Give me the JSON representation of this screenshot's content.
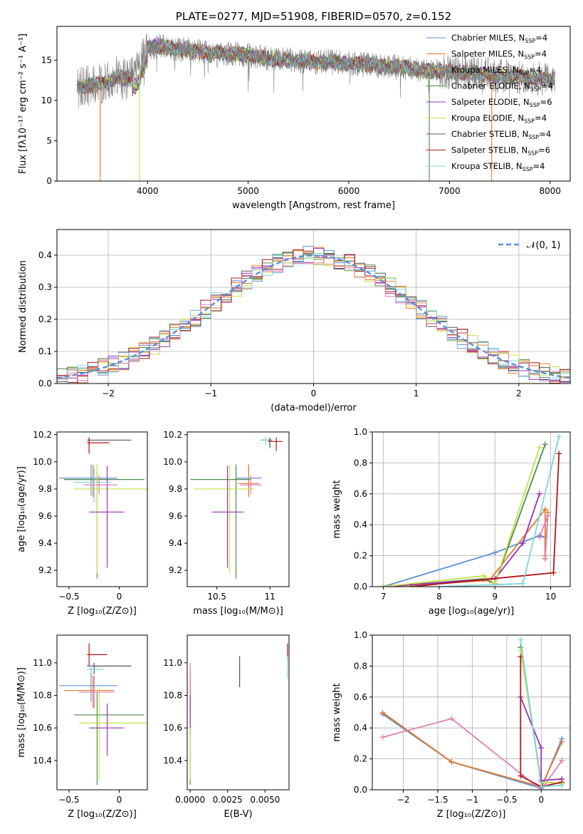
{
  "title": "PLATE=0277, MJD=51908, FIBERID=0570, z=0.152",
  "colors": {
    "chabrier_miles": "#5b8fd6",
    "salpeter_miles": "#e07a2e",
    "kroupa_miles": "#e8843a",
    "chabrier_elodie": "#4c8c4c",
    "salpeter_elodie": "#9b30b8",
    "kroupa_elodie": "#c8e04a",
    "chabrier_stelib": "#555555",
    "salpeter_stelib": "#b01818",
    "kroupa_stelib": "#7fd4de",
    "pink": "#e080b0",
    "data": "#808080",
    "normal": "#5b8fd6"
  },
  "legend": [
    {
      "label": "Chabrier MILES, N",
      "sub": "SSP",
      "tail": "=4",
      "color": "#5b8fd6"
    },
    {
      "label": "Salpeter MILES, N",
      "sub": "SSP",
      "tail": "=4",
      "color": "#e07a2e"
    },
    {
      "label": "Kroupa MILES, N",
      "sub": "SSP",
      "tail": "=4",
      "color": "#e8843a"
    },
    {
      "label": "Chabrier ELODIE, N",
      "sub": "SSP",
      "tail": "=4",
      "color": "#4c8c4c"
    },
    {
      "label": "Salpeter ELODIE, N",
      "sub": "SSP",
      "tail": "=6",
      "color": "#9b30b8"
    },
    {
      "label": "Kroupa ELODIE, N",
      "sub": "SSP",
      "tail": "=4",
      "color": "#c8e04a"
    },
    {
      "label": "Chabrier STELIB, N",
      "sub": "SSP",
      "tail": "=4",
      "color": "#555555"
    },
    {
      "label": "Salpeter STELIB, N",
      "sub": "SSP",
      "tail": "=6",
      "color": "#b01818"
    },
    {
      "label": "Kroupa STELIB, N",
      "sub": "SSP",
      "tail": "=4",
      "color": "#7fd4de"
    }
  ],
  "chart_data": [
    {
      "type": "line",
      "title": "PLATE=0277, MJD=51908, FIBERID=0570, z=0.152",
      "xlabel": "wavelength [Angstrom, rest frame]",
      "ylabel": "Flux [fλ10⁻¹⁷ erg cm⁻² s⁻¹ A⁻¹]",
      "xlim": [
        3100,
        8200
      ],
      "ylim": [
        0,
        19.2
      ],
      "xticks": [
        4000,
        5000,
        6000,
        7000,
        8000
      ],
      "yticks": [
        0,
        5,
        10,
        15
      ],
      "spectrum_continuum": {
        "x": [
          3300,
          3400,
          3500,
          3600,
          3700,
          3800,
          3900,
          4000,
          4100,
          4200,
          4400,
          4600,
          4800,
          5000,
          5200,
          5400,
          5600,
          5800,
          6000,
          6200,
          6400,
          6600,
          6800,
          7000,
          7200,
          7400,
          7600,
          7800,
          8000
        ],
        "y": [
          11.5,
          11.8,
          12.0,
          12.2,
          13.0,
          12.5,
          13.5,
          16.5,
          16.8,
          16.5,
          16.2,
          16.0,
          15.8,
          15.6,
          15.2,
          15.0,
          14.8,
          14.8,
          14.6,
          14.5,
          14.2,
          14.0,
          13.6,
          13.6,
          13.4,
          13.2,
          13.0,
          12.8,
          12.6
        ]
      },
      "model_drop_offs": [
        {
          "side": "low",
          "x": 3530,
          "color": "#e07a2e"
        },
        {
          "side": "low",
          "x": 3920,
          "color": "#c8e04a"
        },
        {
          "side": "high",
          "x": 6800,
          "color": "#4c8c4c"
        },
        {
          "side": "high",
          "x": 7420,
          "color": "#e07a2e"
        }
      ],
      "legend_loc": "upper right"
    },
    {
      "type": "line",
      "xlabel": "(data-model)/error",
      "ylabel": "Normed distribution",
      "xlim": [
        -2.5,
        2.5
      ],
      "ylim": [
        0,
        0.48
      ],
      "xticks": [
        -2,
        -1,
        0,
        1,
        2
      ],
      "yticks": [
        0.0,
        0.1,
        0.2,
        0.3,
        0.4
      ],
      "grid": true,
      "legend": "𝒩(0, 1)",
      "reference": "normal(0,1) dashed"
    },
    {
      "type": "scatter",
      "xlabel": "Z [log₁₀(Z/Z⊙)]",
      "ylabel": "age  [log₁₀(age/yr)]",
      "xlim": [
        -0.62,
        0.28
      ],
      "ylim": [
        9.08,
        10.22
      ],
      "xticks": [
        -0.5,
        0.0
      ],
      "yticks": [
        9.2,
        9.4,
        9.6,
        9.8,
        10.0,
        10.2
      ],
      "errorbars": [
        {
          "x": -0.3,
          "y": 10.16,
          "xlo": -0.32,
          "xhi": 0.12,
          "ylo": 10.12,
          "yhi": 10.18,
          "color": "#555555"
        },
        {
          "x": -0.3,
          "y": 10.14,
          "xlo": -0.32,
          "xhi": -0.1,
          "ylo": 10.06,
          "yhi": 10.18,
          "color": "#b01818"
        },
        {
          "x": -0.28,
          "y": 9.88,
          "xlo": -0.6,
          "xhi": -0.02,
          "ylo": 9.75,
          "yhi": 9.98,
          "color": "#5b8fd6"
        },
        {
          "x": -0.26,
          "y": 9.87,
          "xlo": -0.55,
          "xhi": -0.05,
          "ylo": 9.74,
          "yhi": 9.98,
          "color": "#e07a2e"
        },
        {
          "x": -0.22,
          "y": 9.87,
          "xlo": -0.55,
          "xhi": 0.25,
          "ylo": 9.14,
          "yhi": 9.98,
          "color": "#4c8c4c"
        },
        {
          "x": -0.22,
          "y": 9.8,
          "xlo": -0.45,
          "xhi": 0.28,
          "ylo": 9.18,
          "yhi": 9.98,
          "color": "#c8e04a"
        },
        {
          "x": -0.12,
          "y": 9.63,
          "xlo": -0.3,
          "xhi": 0.05,
          "ylo": 9.22,
          "yhi": 9.97,
          "color": "#9b30b8"
        },
        {
          "x": -0.2,
          "y": 9.83,
          "xlo": -0.35,
          "xhi": -0.02,
          "ylo": 9.76,
          "yhi": 9.9,
          "color": "#e080b0"
        },
        {
          "x": -0.25,
          "y": 9.85,
          "xlo": -0.45,
          "xhi": -0.08,
          "ylo": 9.7,
          "yhi": 9.95,
          "color": "#7fd4de"
        }
      ]
    },
    {
      "type": "scatter",
      "xlabel": "mass [log₁₀(M/M⊙)]",
      "xlim": [
        10.22,
        11.18
      ],
      "ylim": [
        9.08,
        10.22
      ],
      "xticks": [
        10.5,
        11.0
      ],
      "yticks": [
        9.2,
        9.4,
        9.6,
        9.8,
        10.0,
        10.2
      ],
      "errorbars": [
        {
          "x": 11.0,
          "y": 10.16,
          "xlo": 10.92,
          "xhi": 11.02,
          "ylo": 10.1,
          "yhi": 10.18,
          "color": "#555555"
        },
        {
          "x": 11.06,
          "y": 10.15,
          "xlo": 10.98,
          "xhi": 11.12,
          "ylo": 10.08,
          "yhi": 10.18,
          "color": "#b01818"
        },
        {
          "x": 10.8,
          "y": 9.88,
          "xlo": 10.68,
          "xhi": 10.92,
          "ylo": 9.76,
          "yhi": 9.98,
          "color": "#5b8fd6"
        },
        {
          "x": 10.8,
          "y": 9.84,
          "xlo": 10.7,
          "xhi": 10.9,
          "ylo": 9.74,
          "yhi": 9.98,
          "color": "#e07a2e"
        },
        {
          "x": 10.68,
          "y": 9.87,
          "xlo": 10.25,
          "xhi": 10.82,
          "ylo": 9.14,
          "yhi": 9.98,
          "color": "#4c8c4c"
        },
        {
          "x": 10.62,
          "y": 9.8,
          "xlo": 10.28,
          "xhi": 10.85,
          "ylo": 9.18,
          "yhi": 9.98,
          "color": "#c8e04a"
        },
        {
          "x": 10.6,
          "y": 9.63,
          "xlo": 10.45,
          "xhi": 10.75,
          "ylo": 9.22,
          "yhi": 9.97,
          "color": "#9b30b8"
        },
        {
          "x": 10.82,
          "y": 9.83,
          "xlo": 10.72,
          "xhi": 10.92,
          "ylo": 9.76,
          "yhi": 9.9,
          "color": "#e080b0"
        },
        {
          "x": 10.96,
          "y": 10.16,
          "xlo": 10.93,
          "xhi": 10.99,
          "ylo": 10.12,
          "yhi": 10.18,
          "color": "#7fd4de"
        }
      ]
    },
    {
      "type": "line",
      "xlabel": "age  [log₁₀(age/yr)]",
      "ylabel": "mass weight",
      "xlim": [
        6.8,
        10.35
      ],
      "ylim": [
        0,
        1.0
      ],
      "xticks": [
        7,
        8,
        9,
        10
      ],
      "yticks": [
        0.0,
        0.2,
        0.4,
        0.6,
        0.8,
        1.0
      ],
      "grid": true,
      "series": [
        {
          "color": "#5b8fd6",
          "x": [
            7.0,
            9.0,
            9.8,
            9.9,
            9.9
          ],
          "y": [
            0.0,
            0.22,
            0.33,
            0.32,
            0.18
          ]
        },
        {
          "color": "#e07a2e",
          "x": [
            7.0,
            8.9,
            9.9,
            9.9,
            9.95
          ],
          "y": [
            0.0,
            0.04,
            0.5,
            0.2,
            0.48
          ]
        },
        {
          "color": "#4c8c4c",
          "x": [
            7.0,
            8.8,
            9.0,
            9.9
          ],
          "y": [
            0.0,
            0.05,
            0.02,
            0.92
          ]
        },
        {
          "color": "#9b30b8",
          "x": [
            7.0,
            9.0,
            9.5,
            9.8
          ],
          "y": [
            0.0,
            0.05,
            0.28,
            0.6
          ]
        },
        {
          "color": "#c8e04a",
          "x": [
            7.0,
            8.8,
            9.0,
            9.8
          ],
          "y": [
            0.0,
            0.07,
            0.02,
            0.9
          ]
        },
        {
          "color": "#b01818",
          "x": [
            7.5,
            10.05,
            10.15
          ],
          "y": [
            0.0,
            0.09,
            0.86
          ]
        },
        {
          "color": "#7fd4de",
          "x": [
            8.0,
            9.5,
            10.15
          ],
          "y": [
            0.0,
            0.02,
            0.97
          ]
        },
        {
          "color": "#e080b0",
          "x": [
            9.8,
            9.95,
            9.9
          ],
          "y": [
            0.32,
            0.46,
            0.18
          ]
        }
      ]
    },
    {
      "type": "scatter",
      "xlabel": "Z [log₁₀(Z/Z⊙)]",
      "ylabel": "mass [log₁₀(M/M⊙)]",
      "xlim": [
        -0.62,
        0.28
      ],
      "ylim": [
        10.22,
        11.17
      ],
      "xticks": [
        -0.5,
        0.0
      ],
      "yticks": [
        10.4,
        10.6,
        10.8,
        11.0
      ],
      "errorbars": [
        {
          "x": -0.25,
          "y": 10.98,
          "xlo": -0.32,
          "xhi": 0.12,
          "ylo": 10.93,
          "yhi": 11.0,
          "color": "#555555"
        },
        {
          "x": -0.3,
          "y": 11.05,
          "xlo": -0.32,
          "xhi": -0.12,
          "ylo": 10.98,
          "yhi": 11.12,
          "color": "#b01818"
        },
        {
          "x": -0.28,
          "y": 10.86,
          "xlo": -0.6,
          "xhi": -0.02,
          "ylo": 10.76,
          "yhi": 10.96,
          "color": "#5b8fd6"
        },
        {
          "x": -0.26,
          "y": 10.83,
          "xlo": -0.55,
          "xhi": -0.05,
          "ylo": 10.72,
          "yhi": 10.92,
          "color": "#e07a2e"
        },
        {
          "x": -0.22,
          "y": 10.68,
          "xlo": -0.45,
          "xhi": 0.25,
          "ylo": 10.25,
          "yhi": 10.82,
          "color": "#4c8c4c"
        },
        {
          "x": -0.2,
          "y": 10.63,
          "xlo": -0.4,
          "xhi": 0.28,
          "ylo": 10.28,
          "yhi": 10.85,
          "color": "#c8e04a"
        },
        {
          "x": -0.12,
          "y": 10.6,
          "xlo": -0.3,
          "xhi": 0.05,
          "ylo": 10.43,
          "yhi": 10.75,
          "color": "#9b30b8"
        },
        {
          "x": -0.25,
          "y": 10.82,
          "xlo": -0.4,
          "xhi": -0.05,
          "ylo": 10.72,
          "yhi": 10.92,
          "color": "#e080b0"
        },
        {
          "x": -0.28,
          "y": 10.96,
          "xlo": -0.32,
          "xhi": -0.16,
          "ylo": 10.93,
          "yhi": 10.99,
          "color": "#7fd4de"
        }
      ]
    },
    {
      "type": "scatter",
      "xlabel": "E(B-V)",
      "xlim": [
        -0.0002,
        0.0066
      ],
      "ylim": [
        10.22,
        11.17
      ],
      "xticks": [
        0.0,
        0.0025,
        0.005
      ],
      "xticklabels": [
        "0.0000",
        "0.0025",
        "0.0050"
      ],
      "yticks": [
        10.4,
        10.6,
        10.8,
        11.0
      ],
      "errorbars": [
        {
          "x": 0.0033,
          "y": 10.95,
          "ylo": 10.85,
          "yhi": 11.04,
          "color": "#555555"
        },
        {
          "x": 0.0065,
          "y": 11.06,
          "ylo": 11.0,
          "yhi": 11.12,
          "color": "#b01818"
        },
        {
          "x": 0.0065,
          "y": 10.98,
          "ylo": 10.9,
          "yhi": 11.04,
          "color": "#7fd4de"
        },
        {
          "x": 0.0,
          "y": 10.86,
          "ylo": 10.76,
          "yhi": 10.96,
          "color": "#5b8fd6"
        },
        {
          "x": 0.0,
          "y": 10.83,
          "ylo": 10.72,
          "yhi": 10.92,
          "color": "#e07a2e"
        },
        {
          "x": 0.0,
          "y": 10.68,
          "ylo": 10.25,
          "yhi": 10.82,
          "color": "#4c8c4c"
        },
        {
          "x": 0.0,
          "y": 10.63,
          "ylo": 10.28,
          "yhi": 10.85,
          "color": "#c8e04a"
        },
        {
          "x": 0.0,
          "y": 10.75,
          "ylo": 10.6,
          "yhi": 10.9,
          "color": "#9b30b8"
        },
        {
          "x": 0.0,
          "y": 10.9,
          "ylo": 10.8,
          "yhi": 11.0,
          "color": "#e080b0"
        }
      ]
    },
    {
      "type": "line",
      "xlabel": "Z [log₁₀(Z/Z⊙)]",
      "ylabel": "mass weight",
      "xlim": [
        -2.45,
        0.42
      ],
      "ylim": [
        0,
        1.0
      ],
      "xticks": [
        -2.0,
        -1.5,
        -1.0,
        -0.5,
        0.0
      ],
      "yticks": [
        0.0,
        0.2,
        0.4,
        0.6,
        0.8,
        1.0
      ],
      "grid": true,
      "series": [
        {
          "color": "#5b8fd6",
          "x": [
            -2.3,
            -1.3,
            0.0,
            0.3
          ],
          "y": [
            0.49,
            0.18,
            0.01,
            0.33
          ]
        },
        {
          "color": "#e07a2e",
          "x": [
            -2.3,
            -1.3,
            0.0,
            0.3
          ],
          "y": [
            0.5,
            0.18,
            0.02,
            0.31
          ]
        },
        {
          "color": "#e080b0",
          "x": [
            -2.3,
            -1.3,
            0.0,
            0.3
          ],
          "y": [
            0.34,
            0.46,
            0.0,
            0.19
          ]
        },
        {
          "color": "#4c8c4c",
          "x": [
            -0.3,
            0.0,
            0.3
          ],
          "y": [
            0.92,
            0.05,
            0.04
          ]
        },
        {
          "color": "#c8e04a",
          "x": [
            -0.3,
            0.0,
            0.3
          ],
          "y": [
            0.9,
            0.05,
            0.04
          ]
        },
        {
          "color": "#9b30b8",
          "x": [
            -0.3,
            0.0,
            0.0,
            0.3
          ],
          "y": [
            0.6,
            0.27,
            0.06,
            0.07
          ]
        },
        {
          "color": "#b01818",
          "x": [
            -0.3,
            -0.3,
            0.0,
            0.3
          ],
          "y": [
            0.86,
            0.09,
            0.02,
            0.05
          ]
        },
        {
          "color": "#7fd4de",
          "x": [
            -0.3,
            0.0,
            0.3
          ],
          "y": [
            0.97,
            0.02,
            0.03
          ]
        }
      ]
    }
  ]
}
